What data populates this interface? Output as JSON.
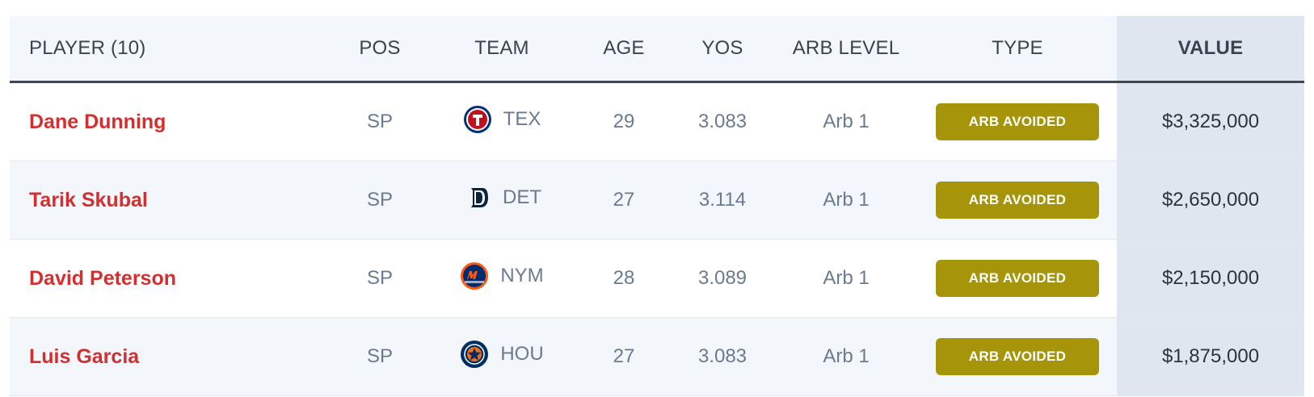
{
  "table": {
    "headers": {
      "player": "PLAYER (10)",
      "pos": "POS",
      "team": "TEAM",
      "age": "AGE",
      "yos": "YOS",
      "arb_level": "ARB LEVEL",
      "type": "TYPE",
      "value": "VALUE"
    },
    "rows": [
      {
        "player": "Dane Dunning",
        "pos": "SP",
        "team": "TEX",
        "team_icon": "rangers-logo-icon",
        "age": "29",
        "yos": "3.083",
        "arb_level": "Arb 1",
        "type": "ARB AVOIDED",
        "value": "$3,325,000"
      },
      {
        "player": "Tarik Skubal",
        "pos": "SP",
        "team": "DET",
        "team_icon": "tigers-logo-icon",
        "age": "27",
        "yos": "3.114",
        "arb_level": "Arb 1",
        "type": "ARB AVOIDED",
        "value": "$2,650,000"
      },
      {
        "player": "David Peterson",
        "pos": "SP",
        "team": "NYM",
        "team_icon": "mets-logo-icon",
        "age": "28",
        "yos": "3.089",
        "arb_level": "Arb 1",
        "type": "ARB AVOIDED",
        "value": "$2,150,000"
      },
      {
        "player": "Luis Garcia",
        "pos": "SP",
        "team": "HOU",
        "team_icon": "astros-logo-icon",
        "age": "27",
        "yos": "3.083",
        "arb_level": "Arb 1",
        "type": "ARB AVOIDED",
        "value": "$1,875,000"
      }
    ]
  },
  "colors": {
    "player_name": "#d42f2f",
    "badge": "#a6950a",
    "value_column": "#dfe6f0",
    "header_border": "#3f4752"
  }
}
